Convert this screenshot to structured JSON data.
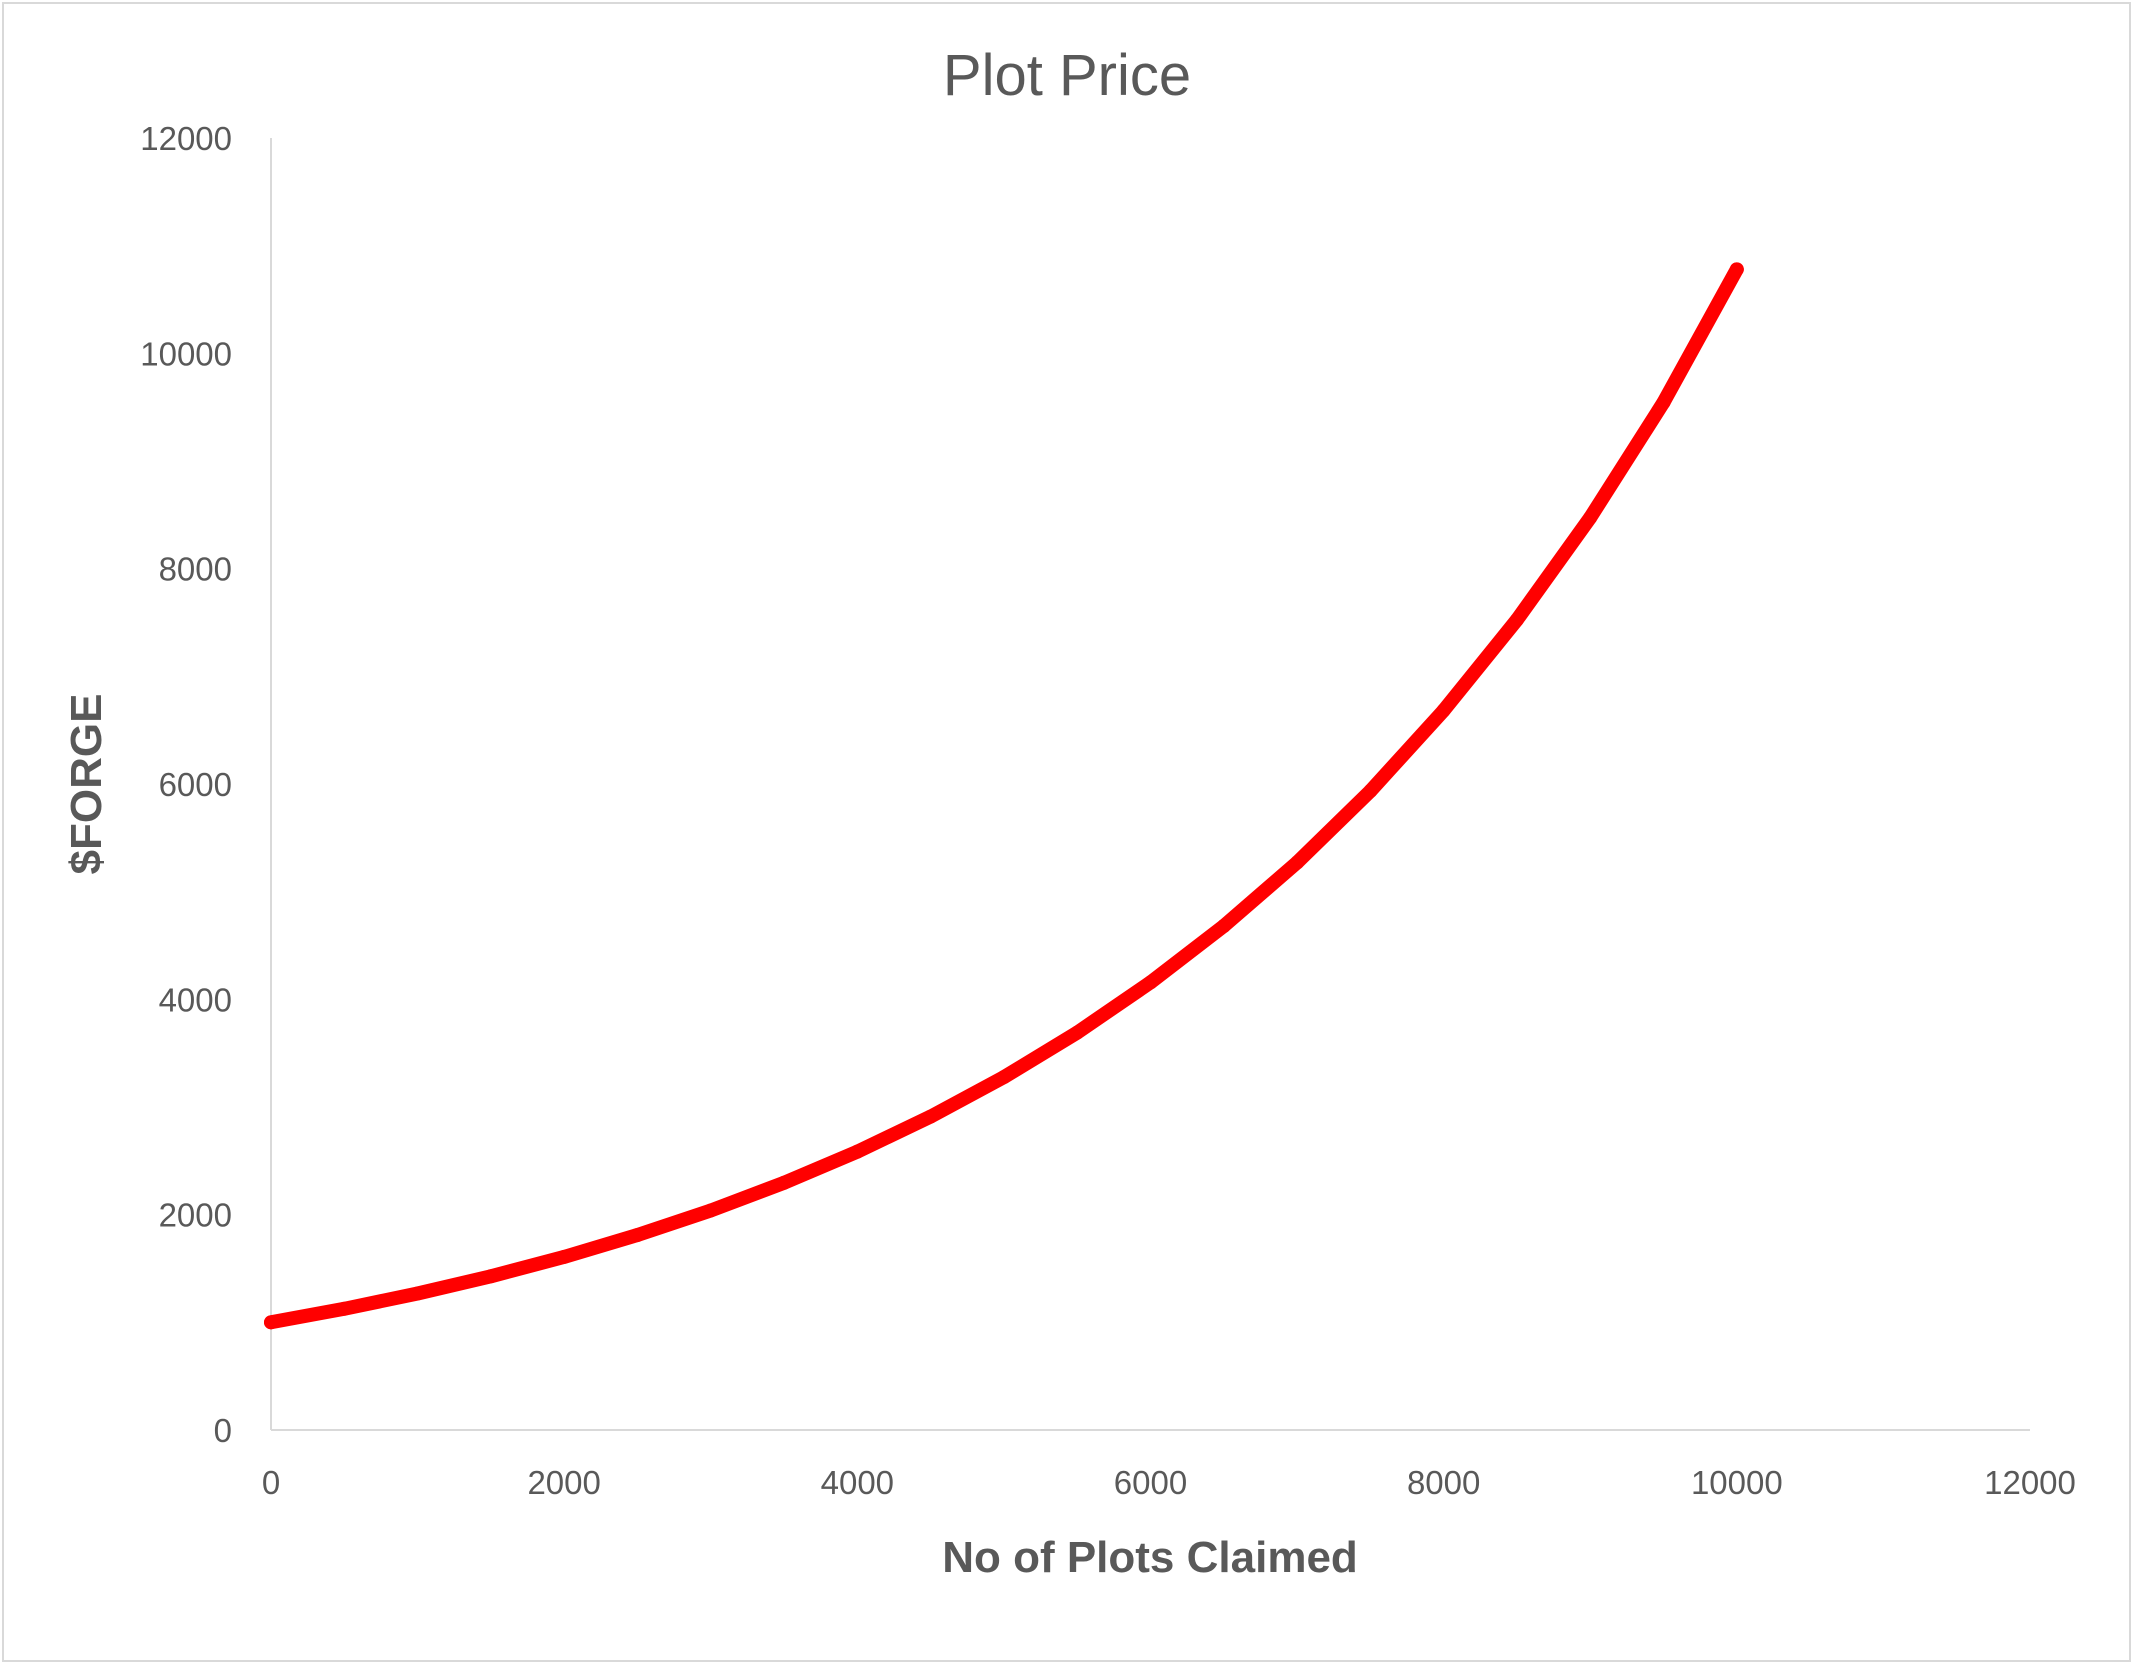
{
  "chart_data": {
    "type": "line",
    "title": "Plot Price",
    "xlabel": "No of Plots Claimed",
    "ylabel": "$FORGE",
    "xlim": [
      0,
      12000
    ],
    "ylim": [
      0,
      12000
    ],
    "x_ticks": [
      "0",
      "2000",
      "4000",
      "6000",
      "8000",
      "10000",
      "12000"
    ],
    "y_ticks": [
      "0",
      "2000",
      "4000",
      "6000",
      "8000",
      "10000",
      "12000"
    ],
    "grid": false,
    "legend": "none",
    "series": [
      {
        "color": "#ff0000",
        "x": [
          0,
          500,
          1000,
          1500,
          2000,
          2500,
          3000,
          3500,
          4000,
          4500,
          5000,
          5500,
          6000,
          6500,
          7000,
          7500,
          8000,
          8500,
          9000,
          9500,
          10000
        ],
        "y": [
          1000,
          1126,
          1268,
          1428,
          1608,
          1811,
          2039,
          2296,
          2585,
          2911,
          3278,
          3691,
          4157,
          4681,
          5271,
          5935,
          6684,
          7526,
          8475,
          9544,
          10780
        ]
      }
    ]
  }
}
